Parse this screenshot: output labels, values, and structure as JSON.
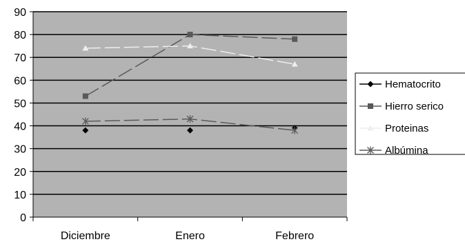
{
  "chart_data": {
    "type": "line",
    "categories": [
      "Diciembre",
      "Enero",
      "Febrero"
    ],
    "ylim": [
      0,
      90
    ],
    "yticks": [
      0,
      10,
      20,
      30,
      40,
      50,
      60,
      70,
      80,
      90
    ],
    "grid": "horizontal major lines",
    "plot_background": "#b3b3b3",
    "legend_position": "right",
    "series": [
      {
        "name": "Hematocrito",
        "values": [
          38,
          38,
          39
        ],
        "color": "#000000",
        "marker": "diamond",
        "line": "none"
      },
      {
        "name": "Hierro serico",
        "values": [
          53,
          80,
          78
        ],
        "color": "#595959",
        "marker": "square",
        "line": "dashed"
      },
      {
        "name": "Proteinas",
        "values": [
          74,
          75,
          67
        ],
        "color": "#eeeeee",
        "marker": "triangle",
        "line": "dashed"
      },
      {
        "name": "Albúmina",
        "values": [
          42,
          43,
          38
        ],
        "color": "#595959",
        "marker": "asterisk",
        "line": "dashed"
      }
    ]
  }
}
